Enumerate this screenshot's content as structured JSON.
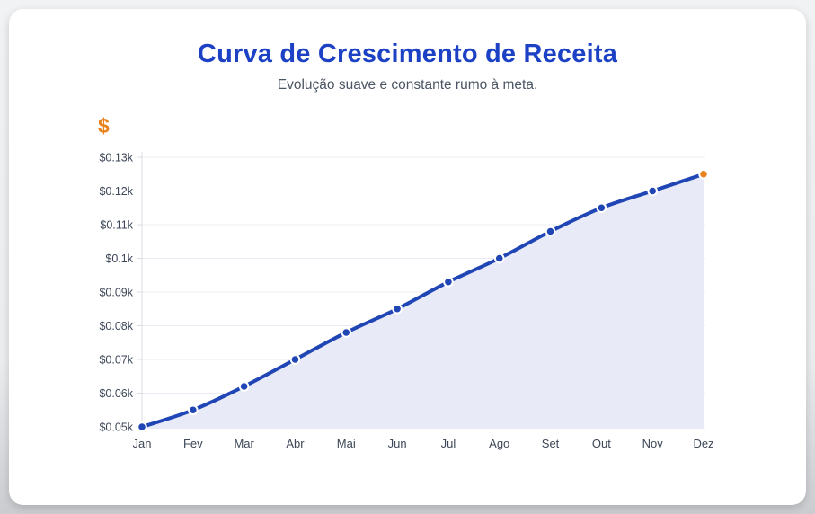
{
  "page": {
    "title": "Curva de Crescimento de Receita",
    "subtitle": "Evolução suave e constante rumo à meta."
  },
  "chart_data": {
    "type": "line",
    "title": "Curva de Crescimento de Receita",
    "subtitle": "Evolução suave e constante rumo à meta.",
    "y_axis_title": "$",
    "xlabel": "",
    "ylabel": "$",
    "categories": [
      "Jan",
      "Fev",
      "Mar",
      "Abr",
      "Mai",
      "Jun",
      "Jul",
      "Ago",
      "Set",
      "Out",
      "Nov",
      "Dez"
    ],
    "series": [
      {
        "name": "Receita",
        "values": [
          50,
          55,
          62,
          70,
          78,
          85,
          93,
          100,
          108,
          115,
          120,
          125
        ]
      }
    ],
    "ylim": [
      50,
      130
    ],
    "ytick_step": 10,
    "ytick_labels": [
      "$0.05k",
      "$0.06k",
      "$0.07k",
      "$0.08k",
      "$0.09k",
      "$0.1k",
      "$0.11k",
      "$0.12k",
      "$0.13k"
    ],
    "grid": true,
    "legend": false,
    "line_smooth": true,
    "area_fill": true
  },
  "colors": {
    "title_blue": "#1C41C4",
    "subtitle_gray": "#4B5563",
    "line_blue": "#2045B5",
    "point_blue": "#2045B5",
    "final_point_orange": "#E8821E",
    "axis_title_orange": "#E8821E",
    "area_fill": "#E8EBF7",
    "gridline": "#E9ECF2",
    "axis_line": "#D9DDE3",
    "tick_label": "#3D4757",
    "card_bg": "#FFFFFF"
  }
}
